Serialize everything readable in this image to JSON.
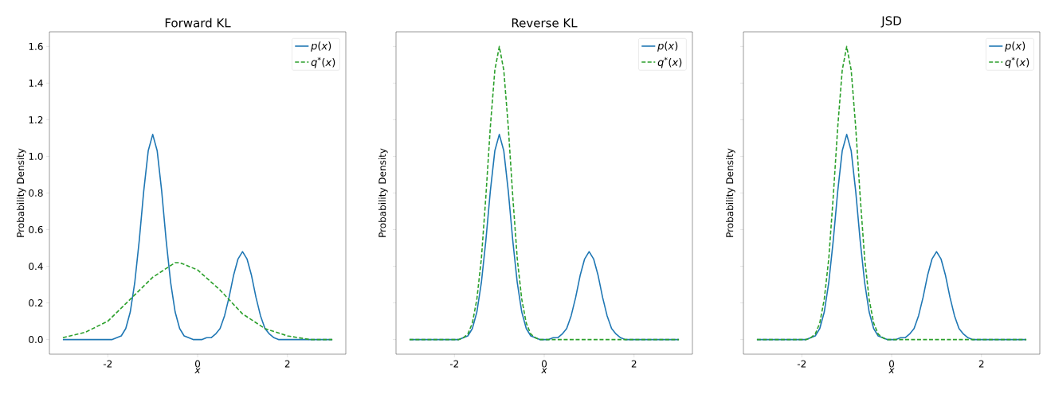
{
  "chart_data": [
    {
      "type": "line",
      "title": "Forward KL",
      "xlabel": "x",
      "ylabel": "Probability Density",
      "xlim": [
        -3.3,
        3.3
      ],
      "ylim": [
        -0.08,
        1.68
      ],
      "xticks": [
        -2,
        0,
        2
      ],
      "yticks": [
        {
          "value": 0,
          "label": "0.0"
        },
        0.2,
        0.4,
        0.6,
        0.8,
        {
          "value": 1,
          "label": "1.0"
        },
        1.2,
        1.4,
        1.6
      ],
      "legend": "top right",
      "series": [
        {
          "name": "*p*(*x*)",
          "color": "#1f77b4",
          "line_style": "solid",
          "x": [
            -3,
            -2.5,
            -2,
            -1.9,
            -1.8,
            -1.7,
            -1.6,
            -1.5,
            -1.4,
            -1.3,
            -1.2,
            -1.1,
            -1,
            -0.9,
            -0.8,
            -0.7,
            -0.6,
            -0.5,
            -0.4,
            -0.3,
            -0.2,
            -0.1,
            0,
            0.1,
            0.2,
            0.3,
            0.4,
            0.5,
            0.6,
            0.7,
            0.8,
            0.9,
            1,
            1.1,
            1.2,
            1.3,
            1.4,
            1.5,
            1.6,
            1.7,
            1.8,
            1.9,
            2,
            2.5,
            3
          ],
          "values": [
            0,
            0,
            0,
            0,
            0.01,
            0.02,
            0.06,
            0.15,
            0.31,
            0.54,
            0.81,
            1.03,
            1.12,
            1.03,
            0.81,
            0.54,
            0.31,
            0.15,
            0.06,
            0.02,
            0.01,
            0,
            0,
            0,
            0.01,
            0.01,
            0.03,
            0.06,
            0.13,
            0.23,
            0.35,
            0.44,
            0.48,
            0.44,
            0.35,
            0.23,
            0.13,
            0.06,
            0.03,
            0.01,
            0,
            0,
            0,
            0,
            0
          ]
        },
        {
          "name": "*q*$^{*}$(*x*)",
          "color": "#2ca02c",
          "line_style": "dashed",
          "x": [
            -3,
            -2.5,
            -2,
            -1.5,
            -1,
            -0.5,
            -0.4,
            0,
            0.5,
            1,
            1.5,
            2,
            2.5,
            3
          ],
          "values": [
            0.01,
            0.04,
            0.1,
            0.22,
            0.34,
            0.42,
            0.42,
            0.38,
            0.27,
            0.14,
            0.06,
            0.02,
            0,
            0
          ]
        }
      ]
    },
    {
      "type": "line",
      "title": "Reverse KL",
      "xlabel": "x",
      "ylabel": "Probability Density",
      "xlim": [
        -3.3,
        3.3
      ],
      "ylim": [
        -0.08,
        1.68
      ],
      "xticks": [
        -2,
        0,
        2
      ],
      "yticks": [
        {
          "value": 0.0,
          "label": null
        },
        {
          "value": 0.2,
          "label": null
        },
        {
          "value": 0.4,
          "label": null
        },
        {
          "value": 0.6,
          "label": null
        },
        {
          "value": 0.8,
          "label": null
        },
        {
          "value": 1.0,
          "label": null
        },
        {
          "value": 1.2,
          "label": null
        },
        {
          "value": 1.4,
          "label": null
        },
        {
          "value": 1.6,
          "label": null
        }
      ],
      "tick_labels": "x",
      "legend": "top right",
      "series": [
        {
          "name": "*p*(*x*)",
          "color": "#1f77b4",
          "line_style": "solid",
          "x": [
            -3,
            -2.5,
            -2,
            -1.9,
            -1.8,
            -1.7,
            -1.6,
            -1.5,
            -1.4,
            -1.3,
            -1.2,
            -1.1,
            -1,
            -0.9,
            -0.8,
            -0.7,
            -0.6,
            -0.5,
            -0.4,
            -0.3,
            -0.2,
            -0.1,
            0,
            0.1,
            0.2,
            0.3,
            0.4,
            0.5,
            0.6,
            0.7,
            0.8,
            0.9,
            1,
            1.1,
            1.2,
            1.3,
            1.4,
            1.5,
            1.6,
            1.7,
            1.8,
            1.9,
            2,
            2.5,
            3
          ],
          "values": [
            0,
            0,
            0,
            0,
            0.01,
            0.02,
            0.06,
            0.15,
            0.31,
            0.54,
            0.81,
            1.03,
            1.12,
            1.03,
            0.81,
            0.54,
            0.31,
            0.15,
            0.06,
            0.02,
            0.01,
            0,
            0,
            0,
            0.01,
            0.01,
            0.03,
            0.06,
            0.13,
            0.23,
            0.35,
            0.44,
            0.48,
            0.44,
            0.35,
            0.23,
            0.13,
            0.06,
            0.03,
            0.01,
            0,
            0,
            0,
            0,
            0
          ]
        },
        {
          "name": "*q*$^{*}$(*x*)",
          "color": "#2ca02c",
          "line_style": "dashed",
          "x": [
            -3,
            -2,
            -1.9,
            -1.8,
            -1.7,
            -1.6,
            -1.5,
            -1.4,
            -1.3,
            -1.2,
            -1.1,
            -1,
            -0.9,
            -0.8,
            -0.7,
            -0.6,
            -0.5,
            -0.4,
            -0.3,
            -0.2,
            -0.1,
            0,
            1,
            2,
            3
          ],
          "values": [
            0,
            0,
            0,
            0.01,
            0.03,
            0.09,
            0.22,
            0.44,
            0.78,
            1.16,
            1.47,
            1.6,
            1.47,
            1.16,
            0.78,
            0.44,
            0.22,
            0.09,
            0.03,
            0.01,
            0,
            0,
            0,
            0,
            0
          ]
        }
      ]
    },
    {
      "type": "line",
      "title": "JSD",
      "xlabel": "x",
      "ylabel": "Probability Density",
      "xlim": [
        -3.3,
        3.3
      ],
      "ylim": [
        -0.08,
        1.68
      ],
      "xticks": [
        -2,
        0,
        2
      ],
      "yticks": [
        {
          "value": 0.0,
          "label": null
        },
        {
          "value": 0.2,
          "label": null
        },
        {
          "value": 0.4,
          "label": null
        },
        {
          "value": 0.6,
          "label": null
        },
        {
          "value": 0.8,
          "label": null
        },
        {
          "value": 1.0,
          "label": null
        },
        {
          "value": 1.2,
          "label": null
        },
        {
          "value": 1.4,
          "label": null
        },
        {
          "value": 1.6,
          "label": null
        }
      ],
      "tick_labels": "x",
      "legend": "top right",
      "series": [
        {
          "name": "*p*(*x*)",
          "color": "#1f77b4",
          "line_style": "solid",
          "x": [
            -3,
            -2.5,
            -2,
            -1.9,
            -1.8,
            -1.7,
            -1.6,
            -1.5,
            -1.4,
            -1.3,
            -1.2,
            -1.1,
            -1,
            -0.9,
            -0.8,
            -0.7,
            -0.6,
            -0.5,
            -0.4,
            -0.3,
            -0.2,
            -0.1,
            0,
            0.1,
            0.2,
            0.3,
            0.4,
            0.5,
            0.6,
            0.7,
            0.8,
            0.9,
            1,
            1.1,
            1.2,
            1.3,
            1.4,
            1.5,
            1.6,
            1.7,
            1.8,
            1.9,
            2,
            2.5,
            3
          ],
          "values": [
            0,
            0,
            0,
            0,
            0.01,
            0.02,
            0.06,
            0.15,
            0.31,
            0.54,
            0.81,
            1.03,
            1.12,
            1.03,
            0.81,
            0.54,
            0.31,
            0.15,
            0.06,
            0.02,
            0.01,
            0,
            0,
            0,
            0.01,
            0.01,
            0.03,
            0.06,
            0.13,
            0.23,
            0.35,
            0.44,
            0.48,
            0.44,
            0.35,
            0.23,
            0.13,
            0.06,
            0.03,
            0.01,
            0,
            0,
            0,
            0,
            0
          ]
        },
        {
          "name": "*q*$^{*}$(*x*)",
          "color": "#2ca02c",
          "line_style": "dashed",
          "x": [
            -3,
            -2,
            -1.9,
            -1.8,
            -1.7,
            -1.6,
            -1.5,
            -1.4,
            -1.3,
            -1.2,
            -1.1,
            -1,
            -0.9,
            -0.8,
            -0.7,
            -0.6,
            -0.5,
            -0.4,
            -0.3,
            -0.2,
            -0.1,
            0,
            1,
            2,
            3
          ],
          "values": [
            0,
            0,
            0,
            0.01,
            0.03,
            0.09,
            0.22,
            0.44,
            0.78,
            1.16,
            1.47,
            1.6,
            1.47,
            1.16,
            0.78,
            0.44,
            0.22,
            0.09,
            0.03,
            0.01,
            0,
            0,
            0,
            0,
            0
          ]
        }
      ]
    }
  ]
}
